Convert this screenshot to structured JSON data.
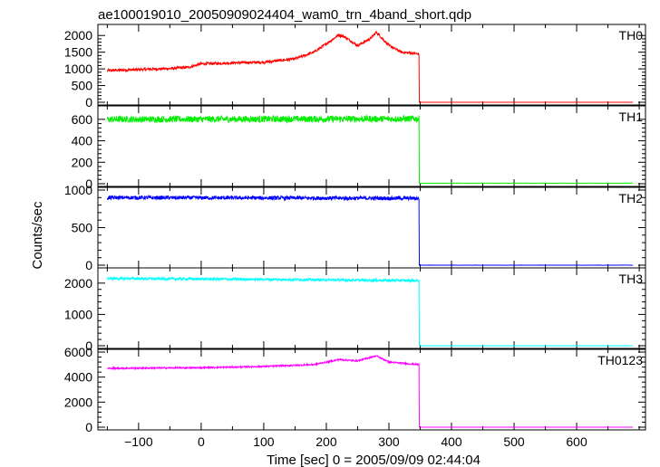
{
  "chart_data": {
    "type": "line",
    "title": "ae100019010_20050909024404_wam0_trn_4band_short.qdp",
    "xlabel": "Time [sec] 0 = 2005/09/09 02:44:04",
    "ylabel": "Counts/sec",
    "xlim": [
      -165,
      710
    ],
    "xticks": [
      -100,
      0,
      100,
      200,
      300,
      400,
      500,
      600
    ],
    "xtick_labels": [
      "−100",
      "0",
      "100",
      "200",
      "300",
      "400",
      "500",
      "600"
    ],
    "grid": false,
    "panels": [
      {
        "label": "TH0",
        "color": "#ff0000",
        "ylim": [
          0,
          2250
        ],
        "yticks": [
          0,
          500,
          1000,
          1500,
          2000
        ],
        "ytick_labels": [
          "0",
          "500",
          "1000",
          "1500",
          "2000"
        ],
        "data_start": -150,
        "data_end": 690,
        "drop_at": 348,
        "after_level": 0,
        "noise": 40,
        "profile": [
          [
            -150,
            950
          ],
          [
            -100,
            980
          ],
          [
            -50,
            1010
          ],
          [
            -20,
            1050
          ],
          [
            0,
            1150
          ],
          [
            50,
            1180
          ],
          [
            100,
            1200
          ],
          [
            150,
            1300
          ],
          [
            180,
            1500
          ],
          [
            200,
            1750
          ],
          [
            220,
            2020
          ],
          [
            230,
            1950
          ],
          [
            250,
            1700
          ],
          [
            270,
            1900
          ],
          [
            280,
            2100
          ],
          [
            300,
            1700
          ],
          [
            320,
            1500
          ],
          [
            347,
            1450
          ]
        ]
      },
      {
        "label": "TH1",
        "color": "#00ee00",
        "ylim": [
          0,
          700
        ],
        "yticks": [
          0,
          200,
          400,
          600
        ],
        "ytick_labels": [
          "0",
          "200",
          "400",
          "600"
        ],
        "data_start": -150,
        "data_end": 690,
        "drop_at": 348,
        "after_level": 5,
        "noise": 30,
        "profile": [
          [
            -150,
            600
          ],
          [
            347,
            605
          ]
        ]
      },
      {
        "label": "TH2",
        "color": "#0000ff",
        "ylim": [
          0,
          1000
        ],
        "yticks": [
          0,
          500,
          1000
        ],
        "ytick_labels": [
          "0",
          "500",
          "1000"
        ],
        "data_start": -150,
        "data_end": 690,
        "drop_at": 348,
        "after_level": 0,
        "noise": 25,
        "profile": [
          [
            -150,
            900
          ],
          [
            347,
            890
          ]
        ]
      },
      {
        "label": "TH3",
        "color": "#00ffff",
        "ylim": [
          0,
          2400
        ],
        "yticks": [
          0,
          1000,
          2000
        ],
        "ytick_labels": [
          "0",
          "1000",
          "2000"
        ],
        "data_start": -150,
        "data_end": 690,
        "drop_at": 348,
        "after_level": 0,
        "noise": 40,
        "profile": [
          [
            -150,
            2150
          ],
          [
            100,
            2120
          ],
          [
            347,
            2080
          ]
        ]
      },
      {
        "label": "TH0123",
        "color": "#ff00ff",
        "ylim": [
          0,
          6000
        ],
        "yticks": [
          0,
          2000,
          4000,
          6000
        ],
        "ytick_labels": [
          "0",
          "2000",
          "4000",
          "6000"
        ],
        "data_start": -150,
        "data_end": 690,
        "drop_at": 348,
        "after_level": 0,
        "noise": 60,
        "profile": [
          [
            -150,
            4700
          ],
          [
            0,
            4750
          ],
          [
            100,
            4850
          ],
          [
            180,
            5000
          ],
          [
            220,
            5400
          ],
          [
            250,
            5300
          ],
          [
            280,
            5700
          ],
          [
            300,
            5200
          ],
          [
            347,
            5000
          ]
        ]
      }
    ]
  }
}
